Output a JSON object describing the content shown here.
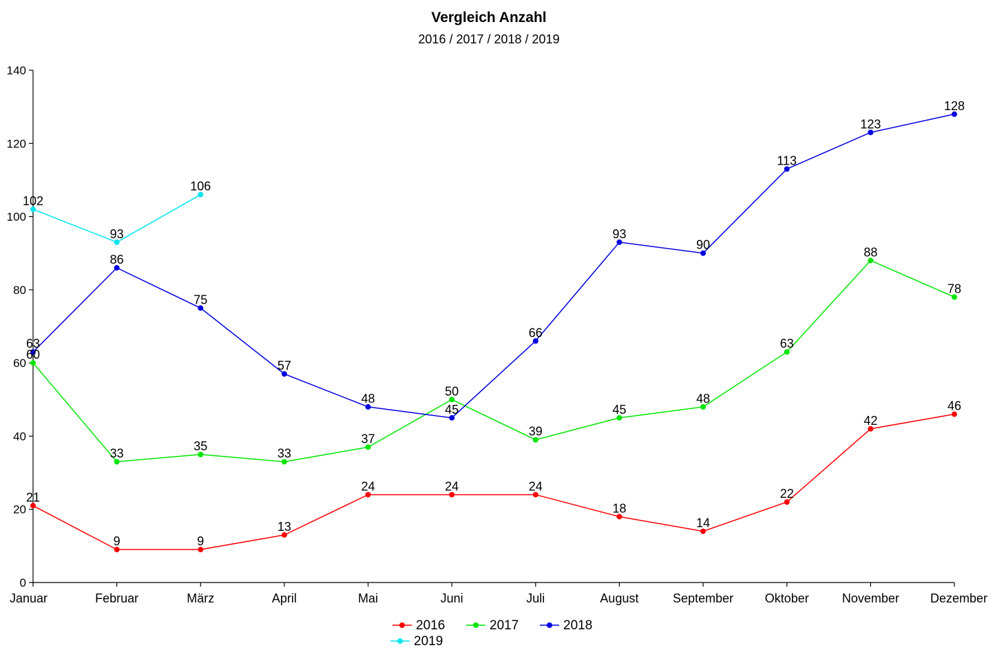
{
  "chart_data": {
    "type": "line",
    "title": "Vergleich Anzahl",
    "subtitle": "2016 / 2017 / 2018 / 2019",
    "xlabel": "",
    "ylabel": "",
    "categories": [
      "Januar",
      "Februar",
      "März",
      "April",
      "Mai",
      "Juni",
      "Juli",
      "August",
      "September",
      "Oktober",
      "November",
      "Dezember"
    ],
    "ylim": [
      0,
      140
    ],
    "yticks": [
      0,
      20,
      40,
      60,
      80,
      100,
      120,
      140
    ],
    "grid": false,
    "legend_position": "bottom-center",
    "data_labels": true,
    "series": [
      {
        "name": "2016",
        "color": "#ff0000",
        "values": [
          21,
          9,
          9,
          13,
          24,
          24,
          24,
          18,
          14,
          22,
          42,
          46
        ]
      },
      {
        "name": "2017",
        "color": "#00e600",
        "values": [
          60,
          33,
          35,
          33,
          37,
          50,
          39,
          45,
          48,
          63,
          88,
          78
        ]
      },
      {
        "name": "2018",
        "color": "#0000e0",
        "values": [
          63,
          86,
          75,
          57,
          48,
          45,
          66,
          93,
          90,
          113,
          123,
          128
        ]
      },
      {
        "name": "2019",
        "color": "#00e5f0",
        "values": [
          102,
          93,
          106,
          null,
          null,
          null,
          null,
          null,
          null,
          null,
          null,
          null
        ]
      }
    ]
  }
}
